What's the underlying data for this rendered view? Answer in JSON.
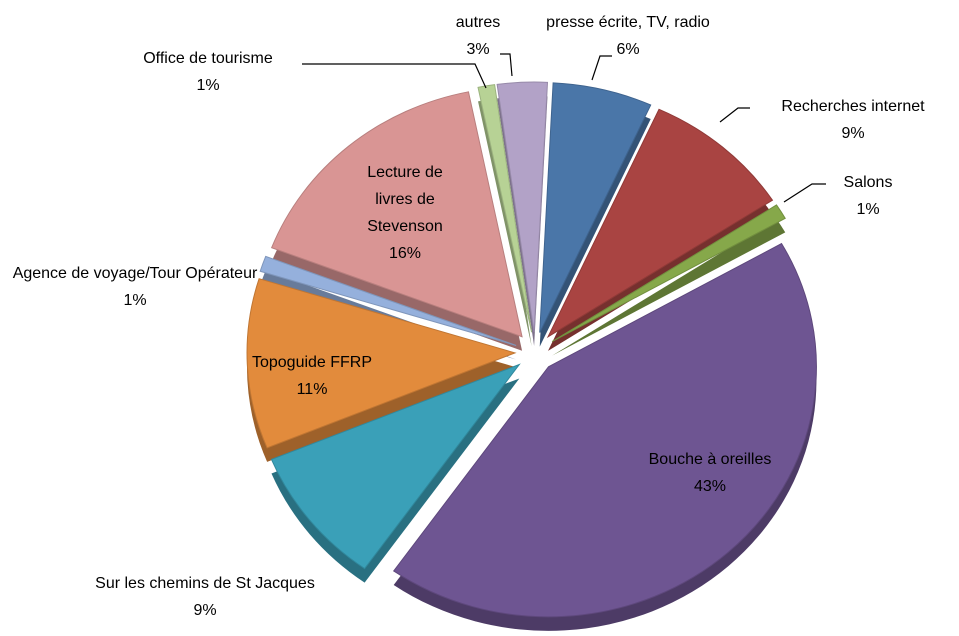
{
  "chart_data": {
    "type": "pie",
    "categories": [
      "presse écrite, TV, radio",
      "Recherches internet",
      "Salons",
      "Bouche à oreilles",
      "Sur les chemins de St Jacques",
      "Topoguide FFRP",
      "Agence de voyage/Tour Opérateur",
      "Lecture de livres de Stevenson",
      "Office de tourisme",
      "autres"
    ],
    "values": [
      6,
      9,
      1,
      43,
      9,
      11,
      1,
      16,
      1,
      3
    ],
    "value_labels": [
      "6%",
      "9%",
      "1%",
      "43%",
      "9%",
      "11%",
      "1%",
      "16%",
      "1%",
      "3%"
    ],
    "colors": [
      "#4a76a8",
      "#a94442",
      "#86a84a",
      "#6e5592",
      "#3aa0b8",
      "#e28b3c",
      "#95b0dc",
      "#d99594",
      "#b7d295",
      "#b2a2c7"
    ]
  }
}
